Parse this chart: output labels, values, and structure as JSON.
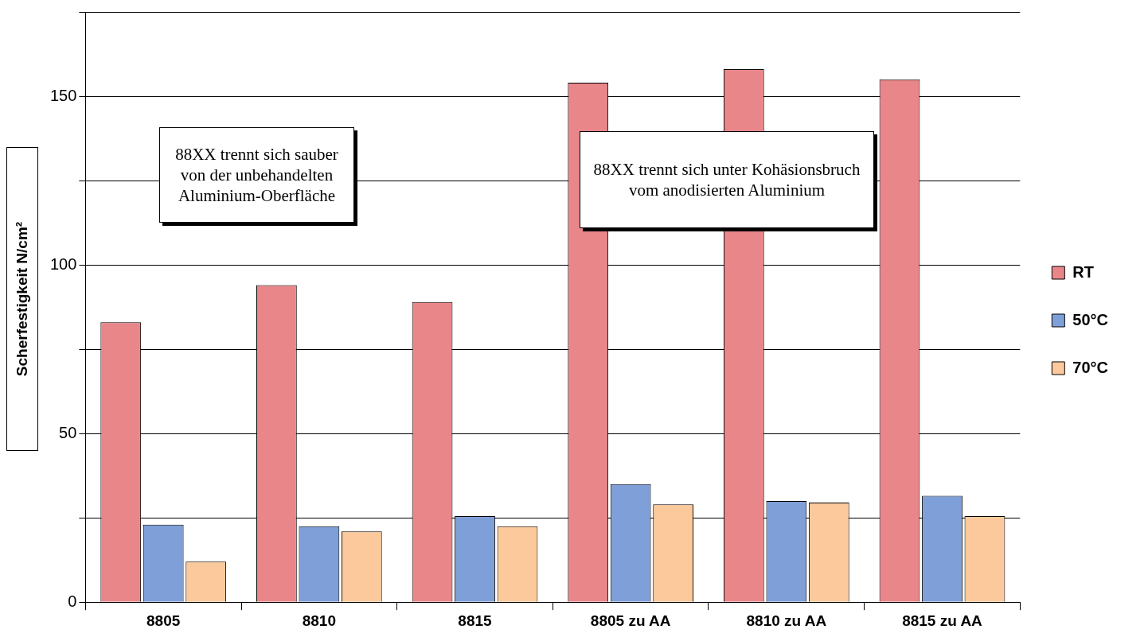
{
  "chart_data": {
    "type": "bar",
    "ylabel": "Scherfestigkeit N/cm²",
    "categories": [
      "8805",
      "8810",
      "8815",
      "8805 zu AA",
      "8810 zu AA",
      "8815 zu AA"
    ],
    "series": [
      {
        "name": "RT",
        "color": "#e8868a",
        "values": [
          83,
          94,
          89,
          154,
          158,
          155
        ]
      },
      {
        "name": "50°C",
        "color": "#7f9fd8",
        "values": [
          23,
          22.5,
          25.5,
          35,
          30,
          31.5
        ]
      },
      {
        "name": "70°C",
        "color": "#fbc99b",
        "values": [
          12,
          21,
          22.5,
          29,
          29.5,
          25.5
        ]
      }
    ],
    "ylim": [
      0,
      175
    ],
    "yticks": [
      0,
      {
        "value": 25,
        "label": null
      },
      50,
      {
        "value": 75,
        "label": null
      },
      100,
      {
        "value": 125,
        "label": null
      },
      150,
      {
        "value": 175,
        "label": null
      }
    ],
    "grid": "y",
    "legend": "right",
    "annotations": [
      "88XX trennt sich sauber von der unbehandelten Aluminium-Oberfläche",
      "88XX trennt sich unter Kohäsionsbruch vom anodisierten Aluminium"
    ]
  }
}
